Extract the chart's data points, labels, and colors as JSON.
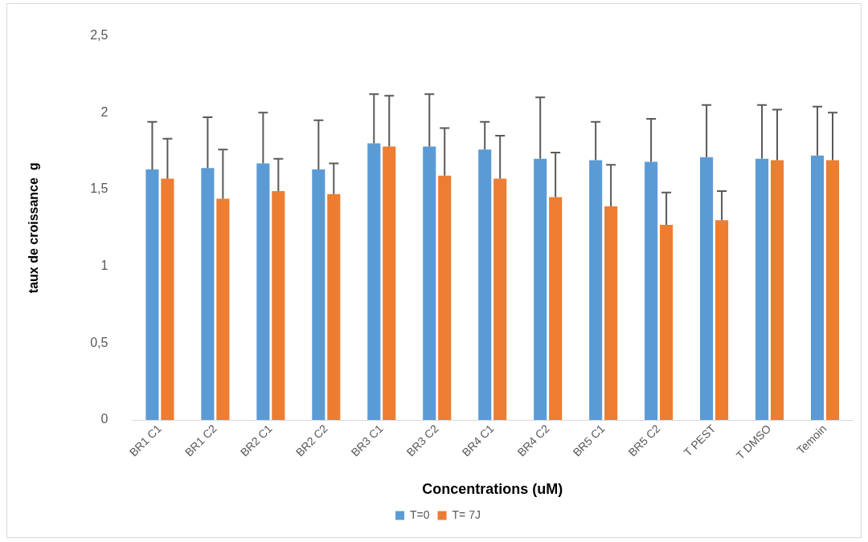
{
  "chart_data": {
    "type": "bar",
    "xlabel": "Concentrations (uM)",
    "ylabel": "taux de croissance  g",
    "categories": [
      "BR1 C1",
      "BR1 C2",
      "BR2 C1",
      "BR2 C2",
      "BR3 C1",
      "BR3 C2",
      "BR4 C1",
      "BR4 C2",
      "BR5 C1",
      "BR5 C2",
      "T PEST",
      "T DMSO",
      "Temoin"
    ],
    "series": [
      {
        "name": "T=0",
        "color": "#5b9bd5",
        "values": [
          1.63,
          1.64,
          1.67,
          1.63,
          1.8,
          1.78,
          1.76,
          1.7,
          1.69,
          1.68,
          1.71,
          1.7,
          1.72
        ],
        "errors": [
          [
            1.63,
            1.94
          ],
          [
            1.64,
            1.97
          ],
          [
            1.67,
            2.0
          ],
          [
            1.63,
            1.95
          ],
          [
            1.8,
            2.12
          ],
          [
            1.78,
            2.12
          ],
          [
            1.76,
            1.94
          ],
          [
            1.7,
            2.1
          ],
          [
            1.69,
            1.94
          ],
          [
            1.68,
            1.96
          ],
          [
            1.71,
            2.05
          ],
          [
            1.7,
            2.05
          ],
          [
            1.72,
            2.04
          ]
        ]
      },
      {
        "name": "T= 7J",
        "color": "#ed7d31",
        "values": [
          1.57,
          1.44,
          1.49,
          1.47,
          1.78,
          1.59,
          1.57,
          1.45,
          1.39,
          1.27,
          1.3,
          1.69,
          1.69
        ],
        "errors": [
          [
            1.57,
            1.83
          ],
          [
            1.44,
            1.76
          ],
          [
            1.49,
            1.7
          ],
          [
            1.47,
            1.67
          ],
          [
            1.78,
            2.11
          ],
          [
            1.59,
            1.9
          ],
          [
            1.57,
            1.85
          ],
          [
            1.45,
            1.74
          ],
          [
            1.39,
            1.66
          ],
          [
            1.27,
            1.48
          ],
          [
            1.3,
            1.49
          ],
          [
            1.69,
            2.02
          ],
          [
            1.69,
            2.0
          ]
        ]
      }
    ],
    "ylim": [
      0,
      2.5
    ],
    "yticks": [
      0,
      {
        "value": 0.5,
        "label": "0,5"
      },
      1,
      {
        "value": 1.5,
        "label": "1,5"
      },
      2,
      {
        "value": 2.5,
        "label": "2,5"
      }
    ],
    "grid": false,
    "legend": "bottom"
  }
}
